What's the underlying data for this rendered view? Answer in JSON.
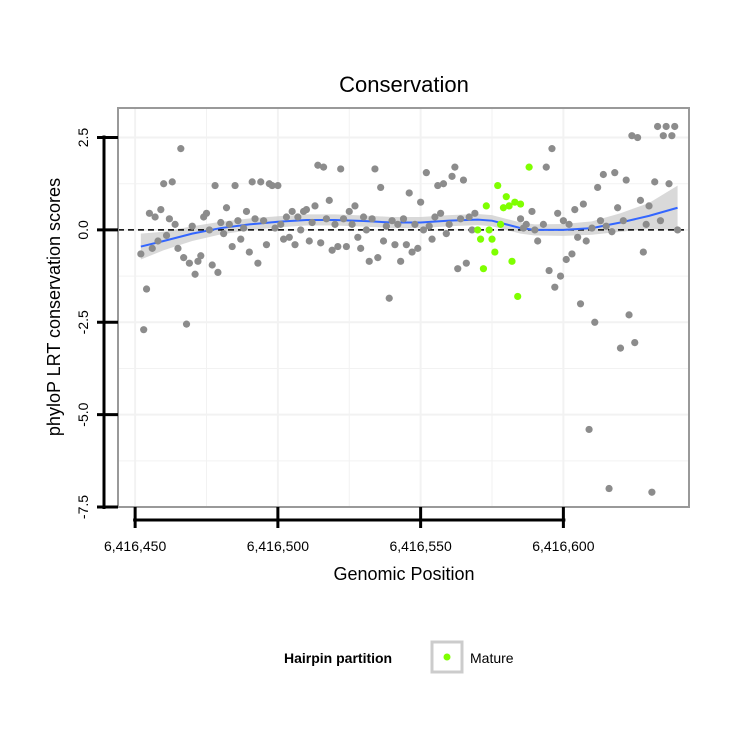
{
  "chart_data": {
    "type": "scatter",
    "title": "Conservation",
    "xlabel": "Genomic Position",
    "ylabel": "phyloP LRT conservation scores",
    "xlim": [
      6416444,
      6416644
    ],
    "ylim": [
      -7.5,
      3.3
    ],
    "x_ticks": [
      6416450,
      6416500,
      6416550,
      6416600
    ],
    "x_tick_labels": [
      "6,416,450",
      "6,416,500",
      "6,416,550",
      "6,416,600"
    ],
    "y_ticks": [
      2.5,
      0.0,
      -2.5,
      -5.0,
      -7.5
    ],
    "y_tick_labels": [
      "2.5",
      "0.0",
      "-2.5",
      "-5.0",
      "-7.5"
    ],
    "reference_line": {
      "y": 0,
      "style": "dashed"
    },
    "legend": {
      "title": "Hairpin partition",
      "entries": [
        {
          "label": "Mature",
          "color": "#7fff00"
        }
      ]
    },
    "colors": {
      "other": "#8c8c8c",
      "mature": "#7fff00",
      "smooth": "#3366ff",
      "band": "#cccccc",
      "panel_border": "#999999",
      "grid": "#f2f2f2"
    },
    "series": [
      {
        "name": "Other",
        "points": [
          [
            6416452,
            -0.65
          ],
          [
            6416453,
            -2.7
          ],
          [
            6416454,
            -1.6
          ],
          [
            6416455,
            0.45
          ],
          [
            6416456,
            -0.5
          ],
          [
            6416457,
            0.35
          ],
          [
            6416458,
            -0.3
          ],
          [
            6416459,
            0.55
          ],
          [
            6416460,
            1.25
          ],
          [
            6416461,
            -0.15
          ],
          [
            6416462,
            0.3
          ],
          [
            6416463,
            1.3
          ],
          [
            6416464,
            0.15
          ],
          [
            6416465,
            -0.5
          ],
          [
            6416466,
            2.2
          ],
          [
            6416467,
            -0.75
          ],
          [
            6416468,
            -2.55
          ],
          [
            6416469,
            -0.9
          ],
          [
            6416470,
            0.1
          ],
          [
            6416471,
            -1.2
          ],
          [
            6416472,
            -0.85
          ],
          [
            6416473,
            -0.7
          ],
          [
            6416474,
            0.35
          ],
          [
            6416475,
            0.45
          ],
          [
            6416476,
            0.0
          ],
          [
            6416477,
            -0.95
          ],
          [
            6416478,
            1.2
          ],
          [
            6416479,
            -1.15
          ],
          [
            6416480,
            0.2
          ],
          [
            6416481,
            -0.1
          ],
          [
            6416482,
            0.6
          ],
          [
            6416483,
            0.15
          ],
          [
            6416484,
            -0.45
          ],
          [
            6416485,
            1.2
          ],
          [
            6416486,
            0.25
          ],
          [
            6416487,
            -0.25
          ],
          [
            6416488,
            0.05
          ],
          [
            6416489,
            0.5
          ],
          [
            6416490,
            -0.6
          ],
          [
            6416491,
            1.3
          ],
          [
            6416492,
            0.3
          ],
          [
            6416493,
            -0.9
          ],
          [
            6416494,
            1.3
          ],
          [
            6416495,
            0.25
          ],
          [
            6416496,
            -0.4
          ],
          [
            6416497,
            1.25
          ],
          [
            6416498,
            1.2
          ],
          [
            6416499,
            0.05
          ],
          [
            6416500,
            1.2
          ],
          [
            6416501,
            0.15
          ],
          [
            6416502,
            -0.25
          ],
          [
            6416503,
            0.35
          ],
          [
            6416504,
            -0.2
          ],
          [
            6416505,
            0.5
          ],
          [
            6416506,
            -0.4
          ],
          [
            6416507,
            0.35
          ],
          [
            6416508,
            0.0
          ],
          [
            6416509,
            0.5
          ],
          [
            6416510,
            0.55
          ],
          [
            6416511,
            -0.3
          ],
          [
            6416512,
            0.2
          ],
          [
            6416513,
            0.65
          ],
          [
            6416514,
            1.75
          ],
          [
            6416515,
            -0.35
          ],
          [
            6416516,
            1.7
          ],
          [
            6416517,
            0.3
          ],
          [
            6416518,
            0.8
          ],
          [
            6416519,
            -0.55
          ],
          [
            6416520,
            0.15
          ],
          [
            6416521,
            -0.45
          ],
          [
            6416522,
            1.65
          ],
          [
            6416523,
            0.3
          ],
          [
            6416524,
            -0.45
          ],
          [
            6416525,
            0.5
          ],
          [
            6416526,
            0.15
          ],
          [
            6416527,
            0.65
          ],
          [
            6416528,
            -0.2
          ],
          [
            6416529,
            -0.5
          ],
          [
            6416530,
            0.35
          ],
          [
            6416531,
            0.0
          ],
          [
            6416532,
            -0.85
          ],
          [
            6416533,
            0.3
          ],
          [
            6416534,
            1.65
          ],
          [
            6416535,
            -0.75
          ],
          [
            6416536,
            1.15
          ],
          [
            6416537,
            -0.3
          ],
          [
            6416538,
            0.1
          ],
          [
            6416539,
            -1.85
          ],
          [
            6416540,
            0.25
          ],
          [
            6416541,
            -0.4
          ],
          [
            6416542,
            0.15
          ],
          [
            6416543,
            -0.85
          ],
          [
            6416544,
            0.3
          ],
          [
            6416545,
            -0.4
          ],
          [
            6416546,
            1.0
          ],
          [
            6416547,
            -0.6
          ],
          [
            6416548,
            0.15
          ],
          [
            6416549,
            -0.5
          ],
          [
            6416550,
            0.75
          ],
          [
            6416551,
            0.0
          ],
          [
            6416552,
            1.55
          ],
          [
            6416553,
            0.1
          ],
          [
            6416554,
            -0.25
          ],
          [
            6416555,
            0.35
          ],
          [
            6416556,
            1.2
          ],
          [
            6416557,
            0.45
          ],
          [
            6416558,
            1.25
          ],
          [
            6416559,
            -0.1
          ],
          [
            6416560,
            0.15
          ],
          [
            6416561,
            1.45
          ],
          [
            6416562,
            1.7
          ],
          [
            6416563,
            -1.05
          ],
          [
            6416564,
            0.3
          ],
          [
            6416565,
            1.35
          ],
          [
            6416566,
            -0.9
          ],
          [
            6416567,
            0.35
          ],
          [
            6416568,
            0.0
          ],
          [
            6416569,
            0.45
          ],
          [
            6416585,
            0.3
          ],
          [
            6416586,
            0.05
          ],
          [
            6416587,
            0.15
          ],
          [
            6416589,
            0.5
          ],
          [
            6416590,
            0.0
          ],
          [
            6416591,
            -0.3
          ],
          [
            6416593,
            0.15
          ],
          [
            6416594,
            1.7
          ],
          [
            6416595,
            -1.1
          ],
          [
            6416596,
            2.2
          ],
          [
            6416597,
            -1.55
          ],
          [
            6416598,
            0.45
          ],
          [
            6416599,
            -1.25
          ],
          [
            6416600,
            0.25
          ],
          [
            6416601,
            -0.8
          ],
          [
            6416602,
            0.15
          ],
          [
            6416603,
            -0.65
          ],
          [
            6416604,
            0.55
          ],
          [
            6416605,
            -0.2
          ],
          [
            6416606,
            -2.0
          ],
          [
            6416607,
            0.7
          ],
          [
            6416608,
            -0.3
          ],
          [
            6416609,
            -5.4
          ],
          [
            6416610,
            0.05
          ],
          [
            6416611,
            -2.5
          ],
          [
            6416612,
            1.15
          ],
          [
            6416613,
            0.25
          ],
          [
            6416614,
            1.5
          ],
          [
            6416615,
            0.1
          ],
          [
            6416616,
            -7.0
          ],
          [
            6416617,
            -0.05
          ],
          [
            6416618,
            1.55
          ],
          [
            6416619,
            0.6
          ],
          [
            6416620,
            -3.2
          ],
          [
            6416621,
            0.25
          ],
          [
            6416622,
            1.35
          ],
          [
            6416623,
            -2.3
          ],
          [
            6416624,
            2.55
          ],
          [
            6416625,
            -3.05
          ],
          [
            6416626,
            2.5
          ],
          [
            6416627,
            0.8
          ],
          [
            6416628,
            -0.6
          ],
          [
            6416629,
            0.15
          ],
          [
            6416630,
            0.65
          ],
          [
            6416631,
            -7.1
          ],
          [
            6416632,
            1.3
          ],
          [
            6416633,
            2.8
          ],
          [
            6416634,
            0.25
          ],
          [
            6416635,
            2.55
          ],
          [
            6416636,
            2.8
          ],
          [
            6416637,
            1.25
          ],
          [
            6416638,
            2.55
          ],
          [
            6416639,
            2.8
          ],
          [
            6416640,
            0.0
          ]
        ]
      },
      {
        "name": "Mature",
        "points": [
          [
            6416570,
            0.0
          ],
          [
            6416571,
            -0.25
          ],
          [
            6416572,
            -1.05
          ],
          [
            6416573,
            0.65
          ],
          [
            6416574,
            0.0
          ],
          [
            6416575,
            -0.25
          ],
          [
            6416576,
            -0.6
          ],
          [
            6416577,
            1.2
          ],
          [
            6416578,
            0.15
          ],
          [
            6416579,
            0.6
          ],
          [
            6416580,
            0.9
          ],
          [
            6416581,
            0.65
          ],
          [
            6416582,
            -0.85
          ],
          [
            6416583,
            0.75
          ],
          [
            6416584,
            -1.8
          ],
          [
            6416585,
            0.7
          ],
          [
            6416588,
            1.7
          ]
        ]
      }
    ],
    "smooth": {
      "x": [
        6416452,
        6416460,
        6416470,
        6416480,
        6416490,
        6416500,
        6416510,
        6416520,
        6416530,
        6416540,
        6416550,
        6416560,
        6416570,
        6416575,
        6416580,
        6416585,
        6416590,
        6416600,
        6416610,
        6416620,
        6416630,
        6416640
      ],
      "y": [
        -0.45,
        -0.3,
        -0.1,
        0.05,
        0.15,
        0.22,
        0.27,
        0.27,
        0.24,
        0.2,
        0.2,
        0.25,
        0.28,
        0.25,
        0.15,
        0.05,
        0.0,
        0.0,
        0.05,
        0.2,
        0.38,
        0.6
      ],
      "band": [
        0.35,
        0.25,
        0.2,
        0.17,
        0.16,
        0.15,
        0.15,
        0.15,
        0.15,
        0.15,
        0.15,
        0.15,
        0.15,
        0.15,
        0.15,
        0.15,
        0.15,
        0.16,
        0.18,
        0.25,
        0.35,
        0.6
      ]
    }
  }
}
